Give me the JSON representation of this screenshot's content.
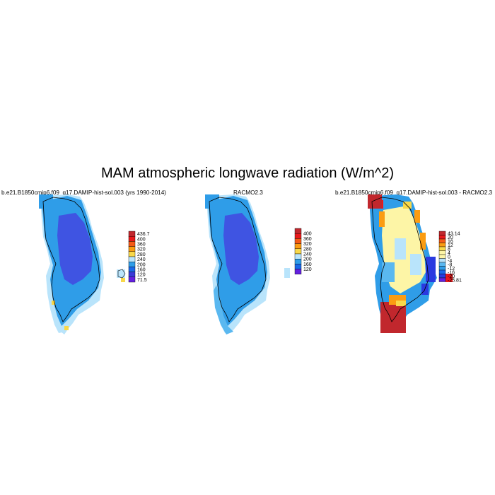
{
  "title": "MAM atmospheric longwave radiation (W/m^2)",
  "chart_data": [
    {
      "type": "heatmap",
      "title": "b.e21.B1850cmip6.f09_g17.DAMIP-hist-sol.003 (yrs 1990-2014)",
      "colorbar": {
        "labels": [
          "436.7",
          "400",
          "360",
          "320",
          "280",
          "240",
          "200",
          "160",
          "120",
          "71.5"
        ],
        "colors": [
          "#c1272d",
          "#e8191b",
          "#f55a16",
          "#fb9c12",
          "#f8d84a",
          "#b9e4fb",
          "#2f9de8",
          "#1a68e8",
          "#3a3ad8",
          "#6420e0"
        ]
      }
    },
    {
      "type": "heatmap",
      "title": "RACMO2.3",
      "colorbar": {
        "labels": [
          "400",
          "360",
          "320",
          "280",
          "240",
          "200",
          "160",
          "120"
        ],
        "colors": [
          "#c1272d",
          "#e8191b",
          "#f55a16",
          "#fb9c12",
          "#f8d84a",
          "#b9e4fb",
          "#2f9de8",
          "#1a68e8",
          "#6420e0"
        ]
      }
    },
    {
      "type": "heatmap",
      "title": "b.e21.B1850cmip6.f09_g17.DAMIP-hist-sol.003 - RACMO2.3",
      "colorbar": {
        "labels": [
          "43.14",
          "20",
          "16",
          "12",
          "8",
          "4",
          "0",
          "-4",
          "-8",
          "-12",
          "-16",
          "-20",
          "-25.81"
        ],
        "colors": [
          "#c1272d",
          "#e8191b",
          "#f55a16",
          "#fb9c12",
          "#f8d84a",
          "#fdf5a6",
          "#fdf5a6",
          "#b9e4fb",
          "#5ab8f0",
          "#2f9de8",
          "#1a68e8",
          "#2a3ae0",
          "#6420e0"
        ]
      }
    }
  ]
}
